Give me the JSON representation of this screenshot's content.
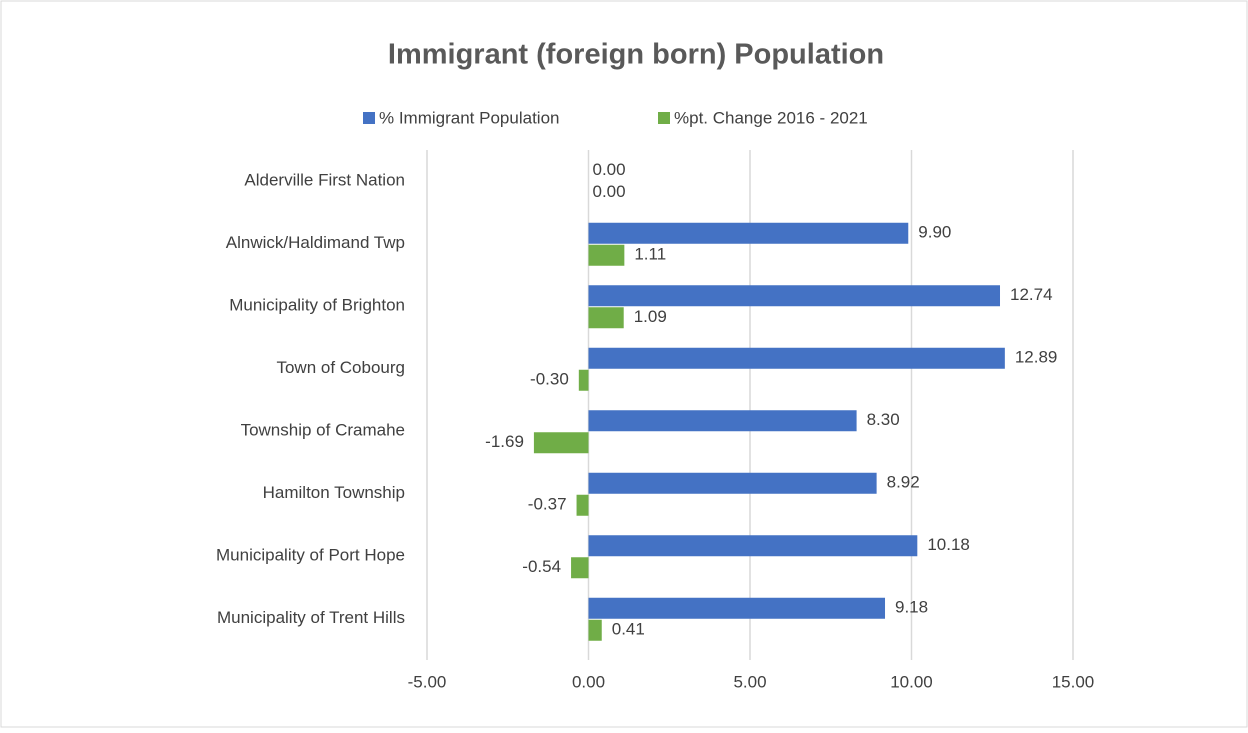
{
  "chart_data": {
    "type": "hbar",
    "title": "Immigrant (foreign born) Population",
    "categories": [
      "Alderville First Nation",
      "Alnwick/Haldimand Twp",
      "Municipality of Brighton",
      "Town of Cobourg",
      "Township of Cramahe",
      "Hamilton Township",
      "Municipality of Port Hope ",
      "Municipality of Trent Hills"
    ],
    "series": [
      {
        "name": "% Immigrant Population",
        "color": "#4472c4",
        "values": [
          0,
          9.9,
          12.74,
          12.89,
          8.3,
          8.92,
          10.18,
          9.18
        ],
        "value_labels": [
          "0.00",
          "9.90",
          "12.74",
          "12.89",
          "8.30",
          "8.92",
          "10.18",
          "9.18"
        ]
      },
      {
        "name": "%pt. Change 2016 - 2021",
        "color": "#70ad47",
        "values": [
          0,
          1.11,
          1.09,
          -0.3,
          -1.69,
          -0.37,
          -0.54,
          0.41
        ],
        "value_labels": [
          "0.00",
          "1.11",
          "1.09",
          "-0.30",
          "-1.69",
          "-0.37",
          "-0.54",
          "0.41"
        ]
      }
    ],
    "xlim": [
      -5,
      15
    ],
    "xticks": [
      {
        "value": -5,
        "label": "-5.00"
      },
      {
        "value": 0,
        "label": "0.00"
      },
      {
        "value": 5,
        "label": "5.00"
      },
      {
        "value": 10,
        "label": "10.00"
      },
      {
        "value": 15,
        "label": "15.00"
      }
    ],
    "grid": true,
    "legend": "top"
  }
}
